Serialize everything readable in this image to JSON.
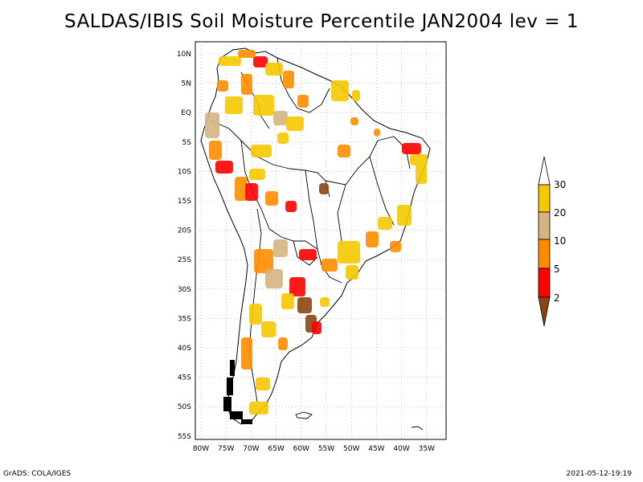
{
  "title": "SALDAS/IBIS Soil Moisture Percentile JAN2004 lev = 1",
  "map": {
    "region": "South America",
    "lon_ticks": [
      "80W",
      "75W",
      "70W",
      "65W",
      "60W",
      "55W",
      "50W",
      "45W",
      "40W",
      "35W"
    ],
    "lat_ticks": [
      "10N",
      "5N",
      "EQ",
      "5S",
      "10S",
      "15S",
      "20S",
      "25S",
      "30S",
      "35S",
      "40S",
      "45S",
      "50S",
      "55S"
    ]
  },
  "legend": {
    "labels": [
      "30",
      "20",
      "10",
      "5",
      "2"
    ],
    "colors": {
      "above_30": "#ffffff",
      "20_30": "#f5c800",
      "10_20": "#d4b483",
      "5_10": "#ff8c00",
      "2_5": "#ff0000",
      "below_2": "#8b4513"
    }
  },
  "footer": {
    "left": "GrADS: COLA/IGES",
    "right": "2021-05-12-19:19"
  }
}
